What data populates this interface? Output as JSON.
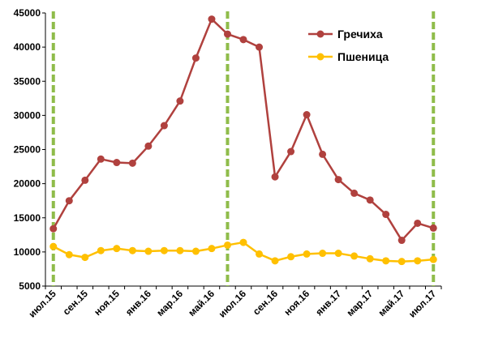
{
  "chart_data": {
    "type": "line",
    "x": [
      "июл.15",
      "авг.15",
      "сен.15",
      "окт.15",
      "ноя.15",
      "дек.15",
      "янв.16",
      "фев.16",
      "мар.16",
      "апр.16",
      "май.16",
      "июн.16",
      "июл.16",
      "авг.16",
      "сен.16",
      "окт.16",
      "ноя.16",
      "дек.16",
      "янв.17",
      "фев.17",
      "мар.17",
      "апр.17",
      "май.17",
      "июн.17",
      "июл.17"
    ],
    "x_tick_labels": [
      "июл.15",
      "сен.15",
      "ноя.15",
      "янв.16",
      "мар.16",
      "май.16",
      "июл.16",
      "сен.16",
      "ноя.16",
      "янв.17",
      "мар.17",
      "май.17",
      "июл.17"
    ],
    "ylim": [
      5000,
      45000
    ],
    "y_ticks": [
      5000,
      10000,
      15000,
      20000,
      25000,
      30000,
      35000,
      40000,
      45000
    ],
    "grid": false,
    "legend_position": "top-right",
    "series": [
      {
        "name": "Гречиха",
        "color": "#b0413e",
        "values": [
          13400,
          17500,
          20500,
          23600,
          23100,
          23000,
          25500,
          28500,
          32100,
          38400,
          44100,
          41900,
          41100,
          40000,
          21000,
          24700,
          30100,
          24300,
          20600,
          18600,
          17600,
          15500,
          11700,
          14200,
          13500
        ]
      },
      {
        "name": "Пшеница",
        "color": "#ffc000",
        "values": [
          10800,
          9600,
          9200,
          10200,
          10500,
          10200,
          10100,
          10200,
          10200,
          10100,
          10500,
          11000,
          11400,
          9700,
          8700,
          9300,
          9700,
          9800,
          9800,
          9400,
          9000,
          8700,
          8600,
          8700,
          8900
        ]
      }
    ],
    "reference_lines": {
      "color": "#8fbc4a",
      "at_x": [
        "июл.15",
        "июн.16",
        "июл.17"
      ]
    }
  }
}
